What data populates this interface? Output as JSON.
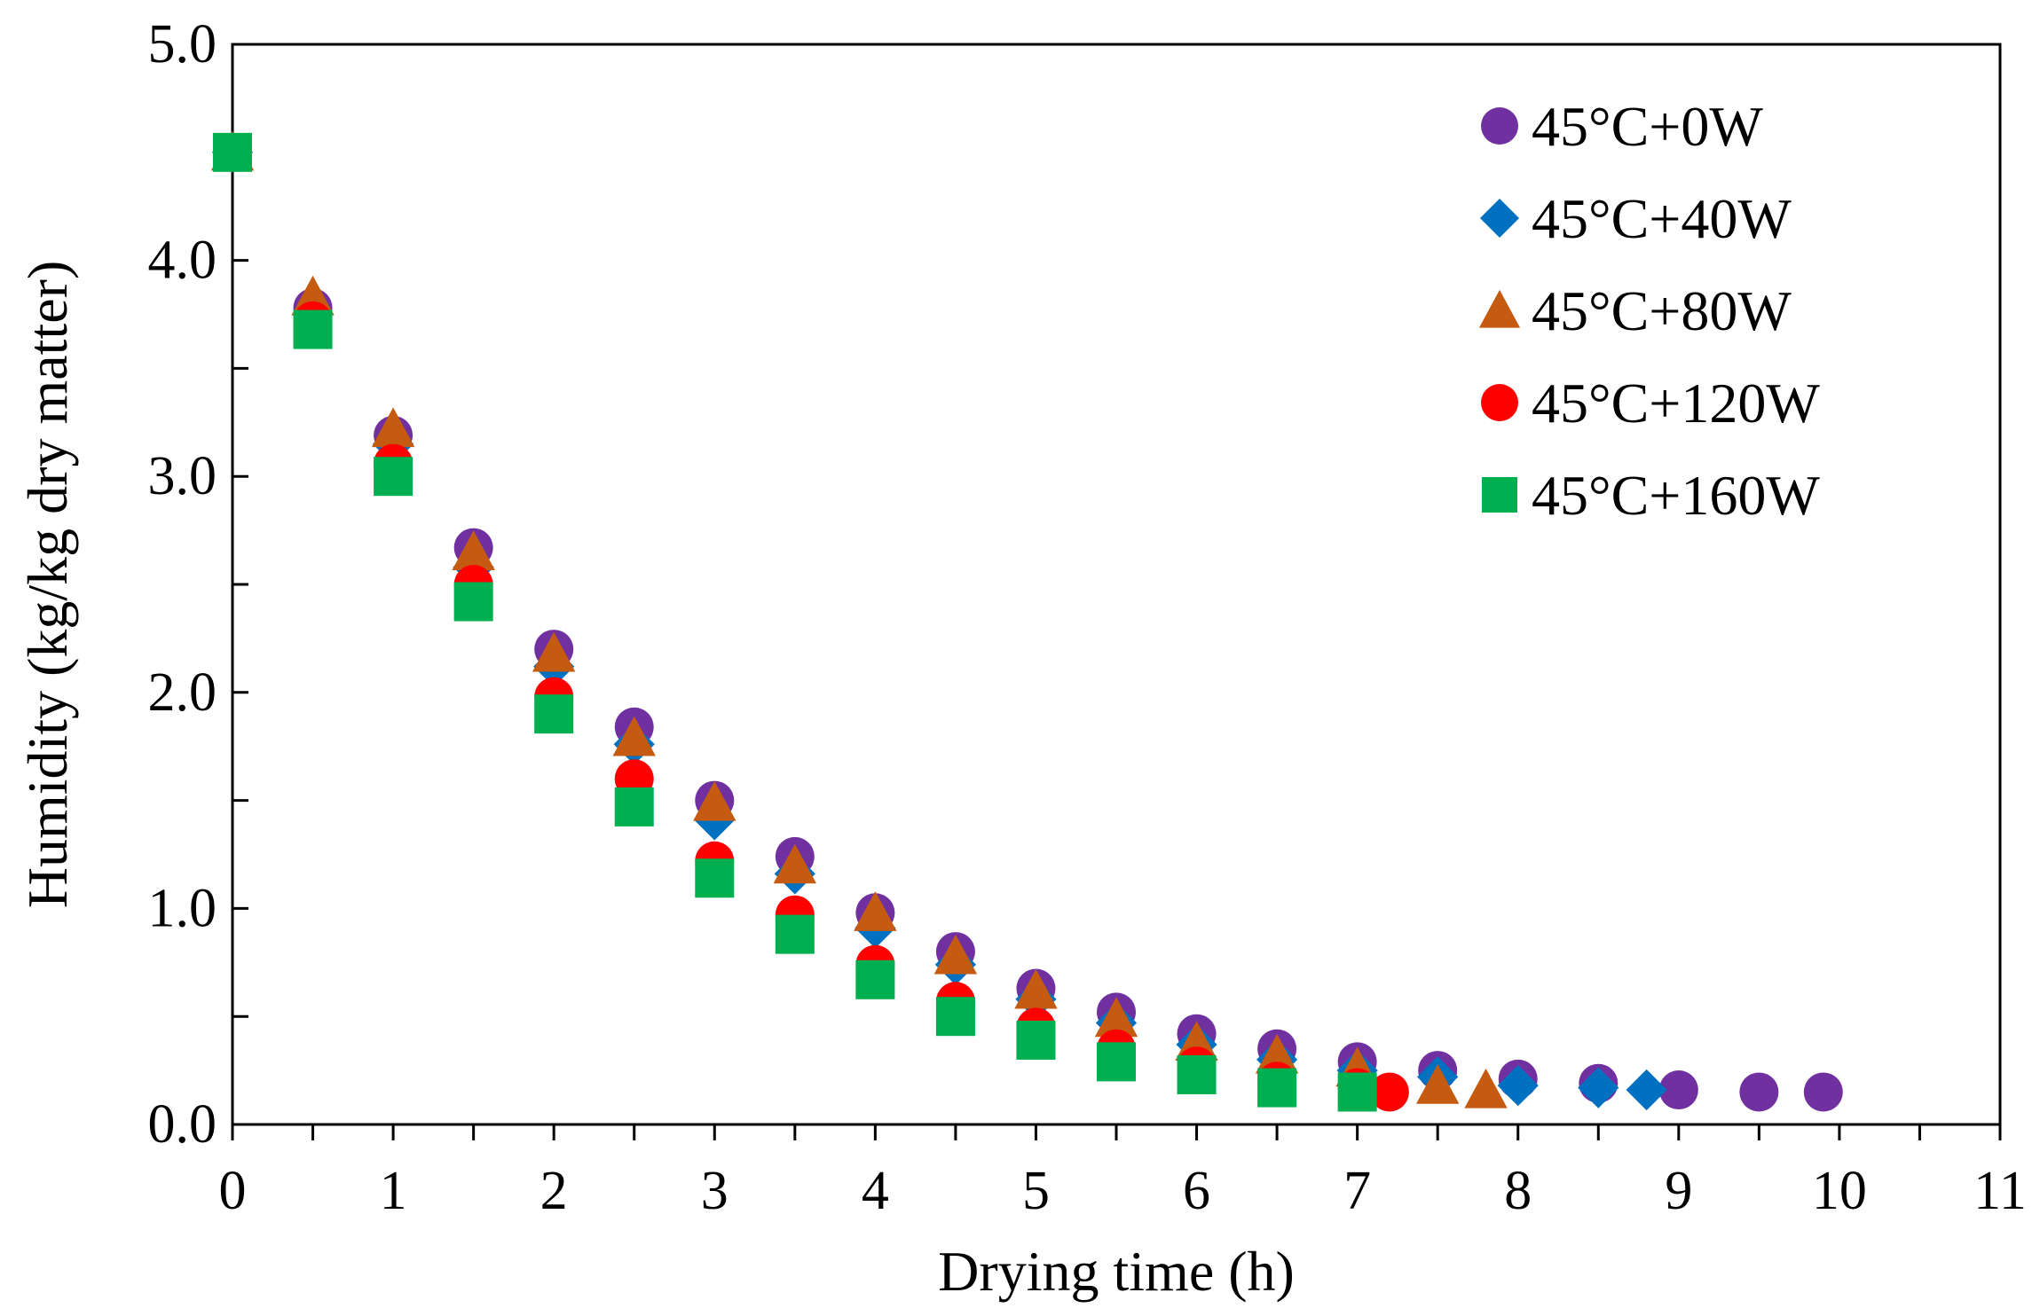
{
  "chart_data": {
    "type": "scatter",
    "title": "",
    "xlabel": "Drying time (h)",
    "ylabel": "Humidity (kg/kg dry matter)",
    "xlim": [
      0,
      11
    ],
    "ylim": [
      0,
      5
    ],
    "x_ticks": [
      0,
      1,
      2,
      3,
      4,
      5,
      6,
      7,
      8,
      9,
      10,
      11
    ],
    "x_tick_labels": [
      "0",
      "1",
      "2",
      "3",
      "4",
      "5",
      "6",
      "7",
      "8",
      "9",
      "10",
      "11"
    ],
    "y_ticks": [
      0,
      1,
      2,
      3,
      4,
      5
    ],
    "y_tick_labels": [
      "0.0",
      "1.0",
      "2.0",
      "3.0",
      "4.0",
      "5.0"
    ],
    "grid": false,
    "legend_position": "top-right",
    "series": [
      {
        "name": "45°C+0W",
        "marker": "circle",
        "color": "#7030A0",
        "points": [
          [
            0,
            4.5
          ],
          [
            0.5,
            3.78
          ],
          [
            1,
            3.19
          ],
          [
            1.5,
            2.67
          ],
          [
            2,
            2.2
          ],
          [
            2.5,
            1.84
          ],
          [
            3,
            1.5
          ],
          [
            3.5,
            1.24
          ],
          [
            4,
            0.98
          ],
          [
            4.5,
            0.8
          ],
          [
            5,
            0.63
          ],
          [
            5.5,
            0.52
          ],
          [
            6,
            0.42
          ],
          [
            6.5,
            0.35
          ],
          [
            7,
            0.29
          ],
          [
            7.5,
            0.25
          ],
          [
            8,
            0.21
          ],
          [
            8.5,
            0.19
          ],
          [
            9,
            0.16
          ],
          [
            9.5,
            0.15
          ],
          [
            9.9,
            0.15
          ]
        ]
      },
      {
        "name": "45°C+40W",
        "marker": "diamond",
        "color": "#0070C0",
        "points": [
          [
            0,
            4.5
          ],
          [
            0.5,
            3.75
          ],
          [
            1,
            3.15
          ],
          [
            1.5,
            2.58
          ],
          [
            2,
            2.12
          ],
          [
            2.5,
            1.76
          ],
          [
            3,
            1.41
          ],
          [
            3.5,
            1.16
          ],
          [
            4,
            0.91
          ],
          [
            4.5,
            0.74
          ],
          [
            5,
            0.58
          ],
          [
            5.5,
            0.47
          ],
          [
            6,
            0.37
          ],
          [
            6.5,
            0.3
          ],
          [
            7,
            0.25
          ],
          [
            7.5,
            0.22
          ],
          [
            8,
            0.18
          ],
          [
            8.5,
            0.17
          ],
          [
            8.8,
            0.16
          ]
        ]
      },
      {
        "name": "45°C+80W",
        "marker": "triangle",
        "color": "#C55A11",
        "points": [
          [
            0,
            4.5
          ],
          [
            0.5,
            3.83
          ],
          [
            1,
            3.22
          ],
          [
            1.5,
            2.65
          ],
          [
            2,
            2.18
          ],
          [
            2.5,
            1.79
          ],
          [
            3,
            1.49
          ],
          [
            3.5,
            1.2
          ],
          [
            4,
            0.98
          ],
          [
            4.5,
            0.78
          ],
          [
            5,
            0.62
          ],
          [
            5.5,
            0.49
          ],
          [
            6,
            0.38
          ],
          [
            6.5,
            0.32
          ],
          [
            7,
            0.26
          ],
          [
            7.5,
            0.18
          ],
          [
            7.8,
            0.16
          ]
        ]
      },
      {
        "name": "45°C+120W",
        "marker": "circle",
        "color": "#FF0000",
        "points": [
          [
            0,
            4.5
          ],
          [
            0.5,
            3.72
          ],
          [
            1,
            3.06
          ],
          [
            1.5,
            2.5
          ],
          [
            2,
            1.98
          ],
          [
            2.5,
            1.6
          ],
          [
            3,
            1.22
          ],
          [
            3.5,
            0.97
          ],
          [
            4,
            0.74
          ],
          [
            4.5,
            0.57
          ],
          [
            5,
            0.45
          ],
          [
            5.5,
            0.35
          ],
          [
            6,
            0.27
          ],
          [
            6.5,
            0.2
          ],
          [
            7,
            0.17
          ],
          [
            7.2,
            0.15
          ]
        ]
      },
      {
        "name": "45°C+160W",
        "marker": "square",
        "color": "#00B050",
        "points": [
          [
            0,
            4.5
          ],
          [
            0.5,
            3.68
          ],
          [
            1,
            3.0
          ],
          [
            1.5,
            2.42
          ],
          [
            2,
            1.9
          ],
          [
            2.5,
            1.47
          ],
          [
            3,
            1.14
          ],
          [
            3.5,
            0.88
          ],
          [
            4,
            0.67
          ],
          [
            4.5,
            0.5
          ],
          [
            5,
            0.39
          ],
          [
            5.5,
            0.29
          ],
          [
            6,
            0.23
          ],
          [
            6.5,
            0.17
          ],
          [
            7,
            0.15
          ]
        ]
      }
    ]
  }
}
